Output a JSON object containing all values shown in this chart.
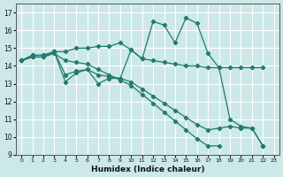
{
  "xlabel": "Humidex (Indice chaleur)",
  "background_color": "#cce8e8",
  "grid_color": "#ffffff",
  "line_color": "#217a6e",
  "xlim": [
    -0.5,
    23.5
  ],
  "ylim": [
    9,
    17.5
  ],
  "xticks": [
    0,
    1,
    2,
    3,
    4,
    5,
    6,
    7,
    8,
    9,
    10,
    11,
    12,
    13,
    14,
    15,
    16,
    17,
    18,
    19,
    20,
    21,
    22,
    23
  ],
  "yticks": [
    9,
    10,
    11,
    12,
    13,
    14,
    15,
    16,
    17
  ],
  "s1_x": [
    0,
    1,
    2,
    3,
    4,
    5,
    6,
    7,
    8,
    9,
    10,
    11,
    12,
    13,
    14,
    15,
    16,
    17,
    18,
    19,
    20,
    21,
    22
  ],
  "s1_y": [
    14.3,
    14.6,
    14.6,
    14.8,
    13.1,
    13.6,
    13.8,
    13.0,
    13.3,
    13.3,
    14.9,
    14.4,
    16.5,
    16.3,
    15.3,
    16.7,
    16.4,
    14.7,
    13.9,
    11.0,
    10.6,
    10.5,
    9.5
  ],
  "s2_x": [
    0,
    1,
    2,
    3,
    4,
    5,
    6,
    7,
    8,
    9,
    10,
    11,
    12,
    13,
    14,
    15,
    16,
    17,
    18,
    19,
    20,
    21,
    22
  ],
  "s2_y": [
    14.3,
    14.6,
    14.6,
    14.8,
    14.8,
    15.0,
    15.0,
    15.1,
    15.1,
    15.3,
    14.9,
    14.4,
    14.3,
    14.2,
    14.1,
    14.0,
    14.0,
    13.9,
    13.9,
    13.9,
    13.9,
    13.9,
    13.9
  ],
  "s3_x": [
    0,
    1,
    2,
    3,
    4,
    5,
    6,
    7,
    8,
    9,
    10,
    11,
    12,
    13,
    14,
    15,
    16,
    17,
    18,
    19,
    20,
    21,
    22
  ],
  "s3_y": [
    14.3,
    14.5,
    14.5,
    14.8,
    13.5,
    13.7,
    13.8,
    13.5,
    13.4,
    13.3,
    13.1,
    12.7,
    12.3,
    11.9,
    11.5,
    11.1,
    10.7,
    10.4,
    10.5,
    10.6,
    10.5,
    10.5,
    9.5
  ],
  "s4_x": [
    0,
    1,
    2,
    3,
    4,
    5,
    6,
    7,
    8,
    9,
    10,
    11,
    12,
    13,
    14,
    15,
    16,
    17,
    18,
    19,
    20,
    21,
    22
  ],
  "s4_y": [
    14.3,
    14.5,
    14.5,
    14.7,
    14.3,
    14.2,
    14.1,
    13.8,
    13.5,
    13.2,
    12.9,
    12.4,
    11.9,
    11.4,
    10.9,
    10.4,
    9.9,
    9.5,
    9.5,
    null,
    null,
    null,
    null
  ]
}
